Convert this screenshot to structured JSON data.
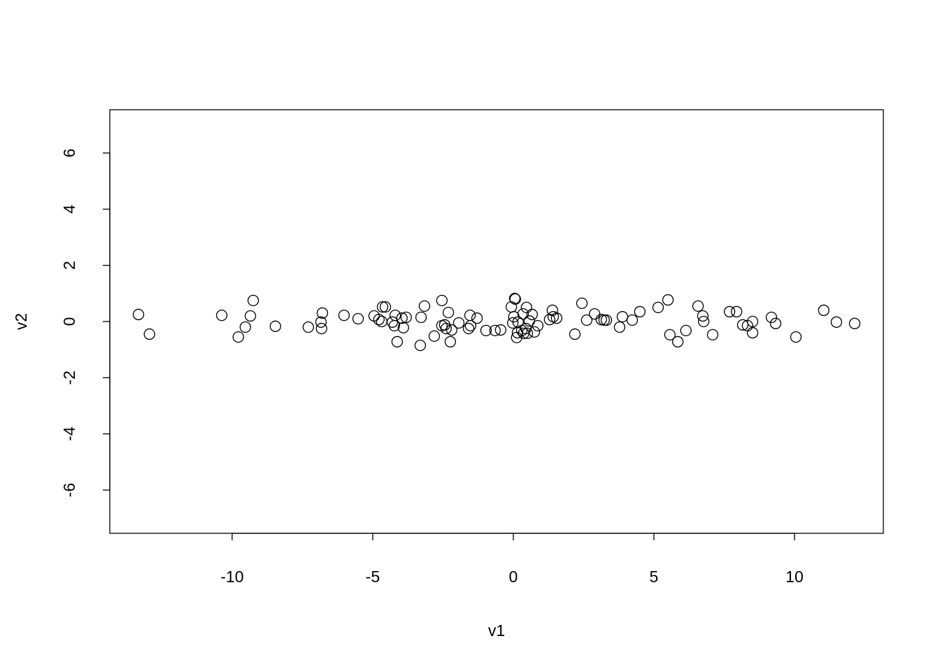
{
  "chart_data": {
    "type": "scatter",
    "title": "",
    "xlabel": "v1",
    "ylabel": "v2",
    "xlim": [
      -14.35,
      13.16
    ],
    "ylim": [
      -7.54,
      7.54
    ],
    "xticks": [
      -10,
      -5,
      0,
      5,
      10
    ],
    "xtick_labels": [
      "-10",
      "-5",
      "0",
      "5",
      "10"
    ],
    "yticks": [
      -6,
      -4,
      -2,
      0,
      2,
      4,
      6
    ],
    "ytick_labels": [
      "-6",
      "-4",
      "-2",
      "0",
      "2",
      "4",
      "6"
    ],
    "grid": false,
    "marker": "open-circle",
    "colors": {
      "points": "#000000",
      "axes": "#000000",
      "background": "#ffffff"
    },
    "points": [
      [
        -13.33,
        0.25
      ],
      [
        -12.94,
        -0.45
      ],
      [
        -10.37,
        0.22
      ],
      [
        -9.78,
        -0.55
      ],
      [
        -9.53,
        -0.2
      ],
      [
        -9.35,
        0.2
      ],
      [
        -9.25,
        0.75
      ],
      [
        -8.46,
        -0.17
      ],
      [
        -7.29,
        -0.2
      ],
      [
        -6.84,
        -0.02
      ],
      [
        -6.82,
        -0.25
      ],
      [
        -6.79,
        0.3
      ],
      [
        -6.02,
        0.22
      ],
      [
        -5.52,
        0.1
      ],
      [
        -4.95,
        0.2
      ],
      [
        -4.78,
        0.07
      ],
      [
        -4.68,
        0.0
      ],
      [
        -4.65,
        0.52
      ],
      [
        -4.55,
        0.52
      ],
      [
        -4.3,
        -0.02
      ],
      [
        -4.23,
        -0.15
      ],
      [
        -4.2,
        0.22
      ],
      [
        -4.13,
        -0.72
      ],
      [
        -3.96,
        0.12
      ],
      [
        -3.91,
        -0.22
      ],
      [
        -3.81,
        0.15
      ],
      [
        -3.31,
        -0.85
      ],
      [
        -3.28,
        0.15
      ],
      [
        -3.16,
        0.55
      ],
      [
        -2.81,
        -0.52
      ],
      [
        -2.54,
        0.75
      ],
      [
        -2.54,
        -0.15
      ],
      [
        -2.44,
        -0.12
      ],
      [
        -2.39,
        -0.25
      ],
      [
        -2.31,
        0.32
      ],
      [
        -2.24,
        -0.72
      ],
      [
        -2.19,
        -0.3
      ],
      [
        -1.94,
        -0.05
      ],
      [
        -1.59,
        -0.25
      ],
      [
        -1.54,
        0.22
      ],
      [
        -1.52,
        -0.15
      ],
      [
        -1.29,
        0.12
      ],
      [
        -0.97,
        -0.32
      ],
      [
        -0.65,
        -0.32
      ],
      [
        -0.45,
        -0.3
      ],
      [
        -0.07,
        0.52
      ],
      [
        -0.02,
        -0.05
      ],
      [
        0.02,
        0.17
      ],
      [
        0.05,
        0.82
      ],
      [
        0.07,
        0.8
      ],
      [
        0.12,
        -0.57
      ],
      [
        0.15,
        -0.4
      ],
      [
        0.17,
        -0.02
      ],
      [
        0.3,
        -0.32
      ],
      [
        0.35,
        0.27
      ],
      [
        0.37,
        -0.42
      ],
      [
        0.45,
        -0.25
      ],
      [
        0.47,
        0.5
      ],
      [
        0.5,
        -0.42
      ],
      [
        0.57,
        0.02
      ],
      [
        0.67,
        0.25
      ],
      [
        0.75,
        -0.37
      ],
      [
        0.87,
        -0.15
      ],
      [
        1.29,
        0.07
      ],
      [
        1.39,
        0.4
      ],
      [
        1.42,
        0.17
      ],
      [
        1.54,
        0.12
      ],
      [
        2.19,
        -0.45
      ],
      [
        2.44,
        0.65
      ],
      [
        2.61,
        0.05
      ],
      [
        2.89,
        0.27
      ],
      [
        3.13,
        0.07
      ],
      [
        3.23,
        0.05
      ],
      [
        3.31,
        0.05
      ],
      [
        3.78,
        -0.2
      ],
      [
        3.88,
        0.17
      ],
      [
        4.23,
        0.05
      ],
      [
        4.5,
        0.35
      ],
      [
        5.15,
        0.5
      ],
      [
        5.5,
        0.77
      ],
      [
        5.57,
        -0.47
      ],
      [
        5.85,
        -0.72
      ],
      [
        6.14,
        -0.32
      ],
      [
        6.57,
        0.55
      ],
      [
        6.74,
        0.2
      ],
      [
        6.77,
        0.0
      ],
      [
        7.09,
        -0.47
      ],
      [
        7.69,
        0.35
      ],
      [
        7.94,
        0.35
      ],
      [
        8.16,
        -0.12
      ],
      [
        8.33,
        -0.15
      ],
      [
        8.51,
        0.0
      ],
      [
        8.51,
        -0.4
      ],
      [
        9.18,
        0.15
      ],
      [
        9.33,
        -0.07
      ],
      [
        10.05,
        -0.55
      ],
      [
        11.04,
        0.4
      ],
      [
        11.49,
        -0.02
      ],
      [
        12.14,
        -0.07
      ]
    ]
  }
}
